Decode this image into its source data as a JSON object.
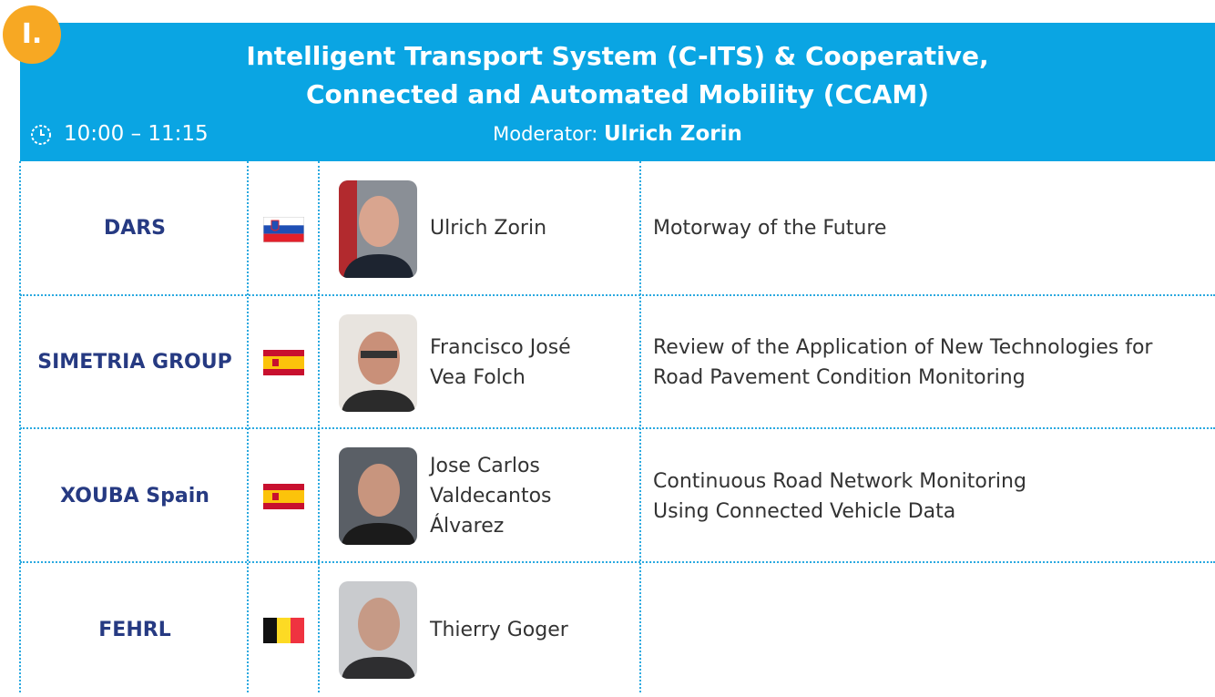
{
  "badge": "I.",
  "header": {
    "title": [
      "Intelligent Transport System (C-ITS) & Cooperative,",
      "Connected and Automated Mobility (CCAM)"
    ],
    "time": "10:00 – 11:15",
    "moderator_label": "Moderator:",
    "moderator": "Ulrich Zorin"
  },
  "rows": [
    {
      "organization": "DARS",
      "speaker": [
        "Ulrich Zorin"
      ],
      "talk": [
        "Motorway of the Future"
      ]
    },
    {
      "organization": "SIMETRIA GROUP",
      "speaker": [
        "Francisco José",
        "Vea Folch"
      ],
      "talk": [
        "Review of the Application of New Technologies for",
        "Road Pavement Condition Monitoring"
      ]
    },
    {
      "organization": "XOUBA Spain",
      "speaker": [
        "Jose Carlos",
        "Valdecantos",
        "Álvarez"
      ],
      "talk": [
        "Continuous Road Network Monitoring",
        "Using Connected Vehicle Data"
      ]
    },
    {
      "organization": "FEHRL",
      "speaker": [
        "Thierry Goger"
      ]
    }
  ]
}
